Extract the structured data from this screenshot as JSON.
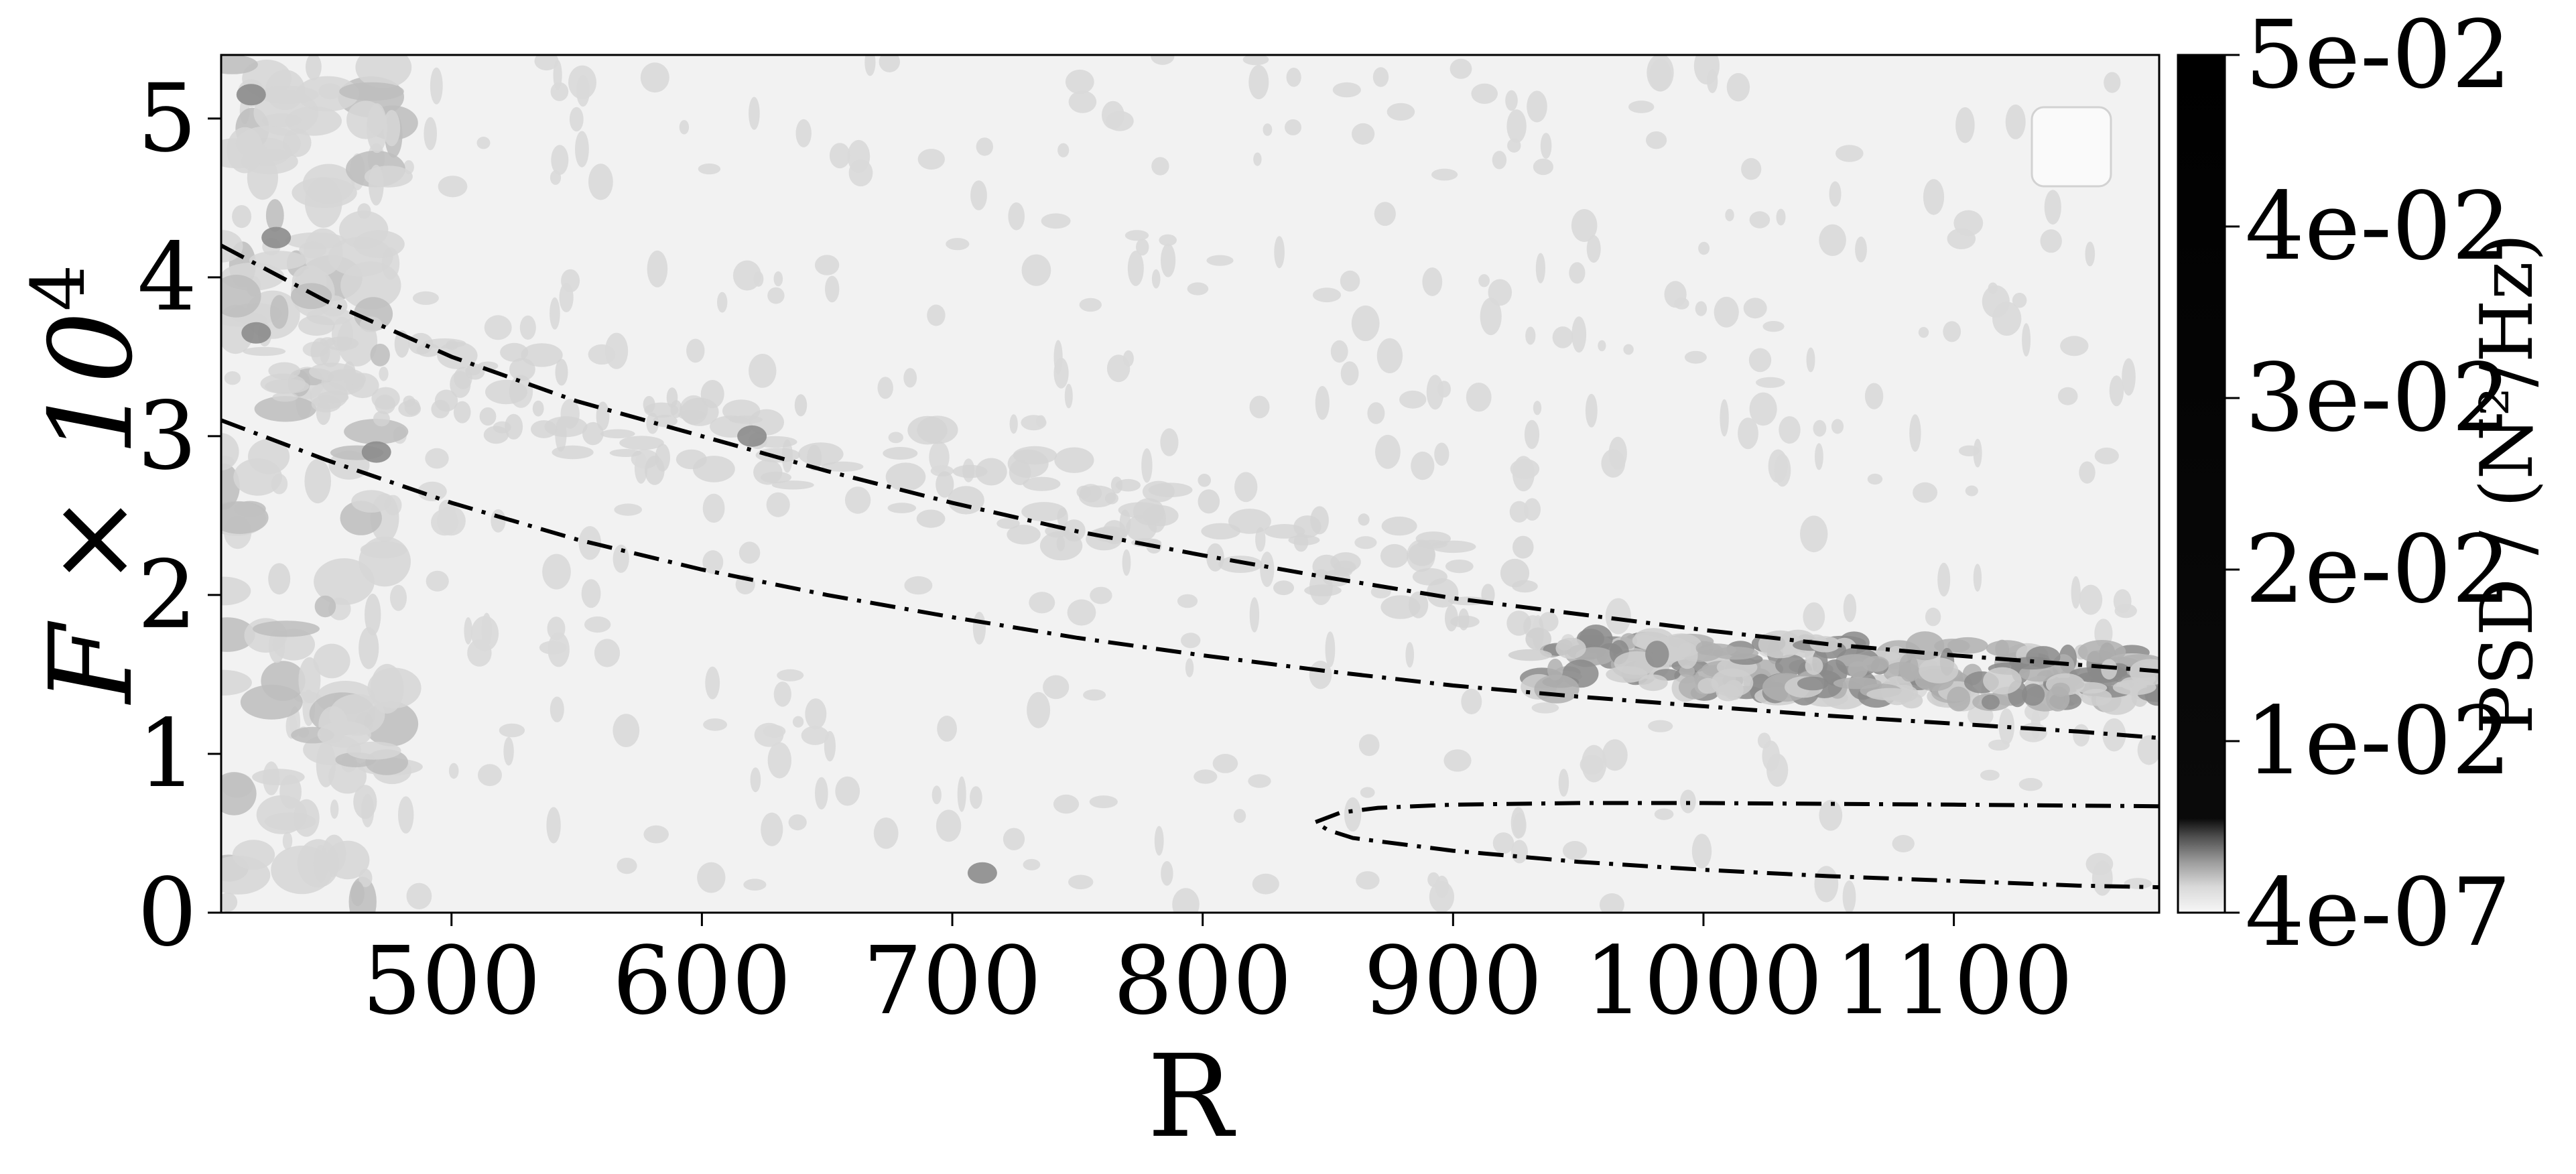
{
  "chart_data": {
    "type": "heatmap",
    "title": "",
    "xlabel": "R",
    "ylabel": "F × 10",
    "ylabel_exponent": "4",
    "xlim": [
      408,
      1182
    ],
    "ylim": [
      0,
      5.4
    ],
    "x_ticks": [
      500,
      600,
      700,
      800,
      900,
      1000,
      1100
    ],
    "y_ticks": [
      0,
      1,
      2,
      3,
      4,
      5
    ],
    "grid": false,
    "legend": {
      "placement": "top-right",
      "entries": []
    },
    "colorbar": {
      "label": "PSD / (N²/Hz)",
      "min": 4e-07,
      "max": 0.05,
      "ticks": [
        4e-07,
        0.01,
        0.02,
        0.03,
        0.04,
        0.05
      ],
      "tick_labels": [
        "4e-07",
        "1e-02",
        "2e-02",
        "3e-02",
        "4e-02",
        "5e-02"
      ],
      "colormap": "gray_r"
    },
    "background_color": "#f2f2f2",
    "line_color": "#000000",
    "energy_bands": [
      {
        "x": [
          408,
          1182
        ],
        "y": [
          0.2,
          5.2
        ],
        "intensity": "low",
        "note_region": "left edge"
      },
      {
        "x": [
          930,
          1182
        ],
        "y": [
          1.35,
          1.75
        ],
        "intensity": "high"
      }
    ],
    "curves": [
      {
        "style": "dash-dot",
        "points": [
          [
            408,
            4.2
          ],
          [
            450,
            3.85
          ],
          [
            500,
            3.5
          ],
          [
            550,
            3.22
          ],
          [
            600,
            3.0
          ],
          [
            650,
            2.78
          ],
          [
            700,
            2.58
          ],
          [
            750,
            2.4
          ],
          [
            800,
            2.25
          ],
          [
            850,
            2.11
          ],
          [
            900,
            1.98
          ],
          [
            950,
            1.88
          ],
          [
            1000,
            1.78
          ],
          [
            1050,
            1.69
          ],
          [
            1100,
            1.62
          ],
          [
            1150,
            1.56
          ],
          [
            1182,
            1.52
          ]
        ]
      },
      {
        "style": "dash-dot",
        "points": [
          [
            408,
            3.1
          ],
          [
            450,
            2.85
          ],
          [
            500,
            2.58
          ],
          [
            550,
            2.35
          ],
          [
            600,
            2.16
          ],
          [
            650,
            2.0
          ],
          [
            700,
            1.86
          ],
          [
            750,
            1.73
          ],
          [
            800,
            1.62
          ],
          [
            850,
            1.52
          ],
          [
            900,
            1.43
          ],
          [
            950,
            1.36
          ],
          [
            1000,
            1.3
          ],
          [
            1050,
            1.24
          ],
          [
            1100,
            1.19
          ],
          [
            1150,
            1.14
          ],
          [
            1182,
            1.1
          ]
        ]
      },
      {
        "style": "dash-dot",
        "points": [
          [
            1182,
            0.67
          ],
          [
            1100,
            0.68
          ],
          [
            1000,
            0.69
          ],
          [
            950,
            0.69
          ],
          [
            900,
            0.68
          ],
          [
            870,
            0.66
          ],
          [
            855,
            0.63
          ],
          [
            845,
            0.57
          ],
          [
            850,
            0.52
          ],
          [
            860,
            0.47
          ],
          [
            900,
            0.39
          ],
          [
            950,
            0.32
          ],
          [
            1000,
            0.27
          ],
          [
            1050,
            0.23
          ],
          [
            1100,
            0.2
          ],
          [
            1150,
            0.17
          ],
          [
            1182,
            0.16
          ]
        ]
      }
    ]
  }
}
